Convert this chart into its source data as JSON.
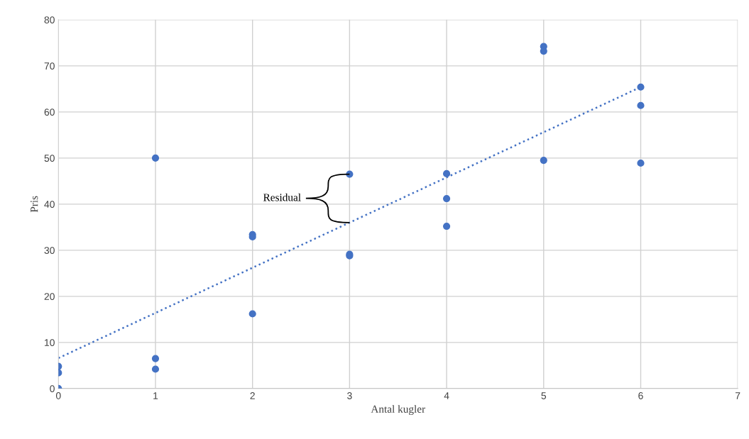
{
  "chart_data": {
    "type": "scatter",
    "xlabel": "Antal kugler",
    "ylabel": "Pris",
    "xlim": [
      0,
      7
    ],
    "xticks": [
      0,
      1,
      2,
      3,
      4,
      5,
      6,
      7
    ],
    "ylim": [
      0,
      80
    ],
    "yticks": [
      0,
      10,
      20,
      30,
      40,
      50,
      60,
      70,
      80
    ],
    "grid": true,
    "marker": "circle",
    "series": [
      {
        "color": "#4472c4",
        "x": [
          0,
          0,
          0,
          1,
          1,
          1,
          2,
          2,
          2,
          3,
          3,
          3,
          4,
          4,
          4,
          5,
          5,
          5,
          6,
          6,
          6
        ],
        "values": [
          4.8,
          3.4,
          0,
          50,
          6.5,
          4.2,
          33.4,
          32.9,
          16.2,
          46.5,
          29.1,
          28.8,
          46.6,
          41.2,
          35.2,
          74.2,
          73.2,
          49.5,
          65.4,
          61.4,
          48.9
        ]
      },
      {
        "type": "line",
        "color": "#4472c4",
        "line_style": "dotted",
        "marker": "none",
        "x": [
          0,
          6
        ],
        "values": [
          6.6,
          65.4
        ]
      }
    ],
    "annotations": [
      {
        "text": "Residual",
        "x": 3,
        "y": 46.5
      }
    ]
  }
}
